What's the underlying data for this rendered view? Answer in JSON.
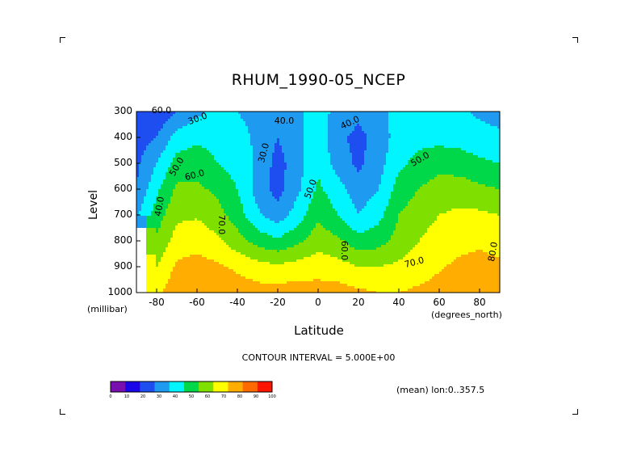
{
  "chart_data": {
    "type": "heatmap",
    "title": "RHUM_1990-05_NCEP",
    "xlabel": "Latitude",
    "ylabel": "Level",
    "x_unit": "(degrees_north)",
    "y_unit": "(millibar)",
    "xlim": [
      -90,
      90
    ],
    "ylim": [
      1000,
      300
    ],
    "x_ticks": [
      "-80",
      "-60",
      "-40",
      "-20",
      "0",
      "20",
      "40",
      "60",
      "80"
    ],
    "x_tick_values": [
      -80,
      -60,
      -40,
      -20,
      0,
      20,
      40,
      60,
      80
    ],
    "y_ticks": [
      "300",
      "400",
      "500",
      "600",
      "700",
      "800",
      "900",
      "1000"
    ],
    "y_tick_values": [
      300,
      400,
      500,
      600,
      700,
      800,
      900,
      1000
    ],
    "contour_interval_text": "CONTOUR INTERVAL = 5.000E+00",
    "mean_note": "(mean) lon:0..357.5",
    "colorbar": {
      "labels": [
        "0",
        "10",
        "20",
        "30",
        "40",
        "50",
        "60",
        "70",
        "80",
        "90",
        "100"
      ],
      "colors": [
        "#7a0fb0",
        "#1a06e6",
        "#1e4ef0",
        "#1e9af0",
        "#00f5ff",
        "#00d84a",
        "#7fe000",
        "#ffff00",
        "#ffad00",
        "#ff6a00",
        "#ff1400"
      ]
    },
    "contour_labels": [
      "30.0",
      "40.0",
      "30.0",
      "40.0",
      "50.0",
      "60.0",
      "40.0",
      "50.0",
      "70.0",
      "60.0",
      "70.0",
      "80.0",
      "50.0",
      "60.0"
    ],
    "grid": {
      "lats": [
        -90,
        -80,
        -70,
        -60,
        -50,
        -40,
        -30,
        -20,
        -10,
        0,
        10,
        20,
        30,
        40,
        50,
        60,
        70,
        80,
        90
      ],
      "levels": [
        300,
        400,
        500,
        600,
        700,
        800,
        900,
        1000
      ],
      "values": [
        [
          20,
          22,
          30,
          38,
          42,
          40,
          36,
          34,
          38,
          44,
          37,
          33,
          36,
          44,
          46,
          44,
          42,
          38,
          36
        ],
        [
          25,
          30,
          44,
          48,
          46,
          44,
          38,
          30,
          37,
          46,
          32,
          27,
          34,
          45,
          47,
          47,
          46,
          44,
          42
        ],
        [
          28,
          40,
          54,
          56,
          50,
          46,
          38,
          26,
          36,
          48,
          35,
          28,
          36,
          48,
          53,
          56,
          55,
          52,
          50
        ],
        [
          30,
          48,
          62,
          62,
          58,
          50,
          36,
          26,
          38,
          52,
          44,
          34,
          40,
          54,
          60,
          65,
          65,
          62,
          60
        ],
        [
          38,
          55,
          68,
          69,
          64,
          55,
          42,
          34,
          45,
          58,
          50,
          40,
          47,
          60,
          66,
          70,
          72,
          72,
          70
        ],
        [
          null,
          62,
          74,
          76,
          72,
          64,
          56,
          52,
          58,
          66,
          62,
          54,
          56,
          64,
          70,
          74,
          77,
          78,
          76
        ],
        [
          null,
          70,
          82,
          84,
          82,
          78,
          74,
          72,
          74,
          76,
          74,
          70,
          70,
          72,
          75,
          79,
          82,
          84,
          82
        ],
        [
          null,
          78,
          86,
          88,
          86,
          86,
          84,
          84,
          85,
          84,
          84,
          82,
          80,
          80,
          82,
          84,
          86,
          88,
          86
        ]
      ]
    }
  }
}
